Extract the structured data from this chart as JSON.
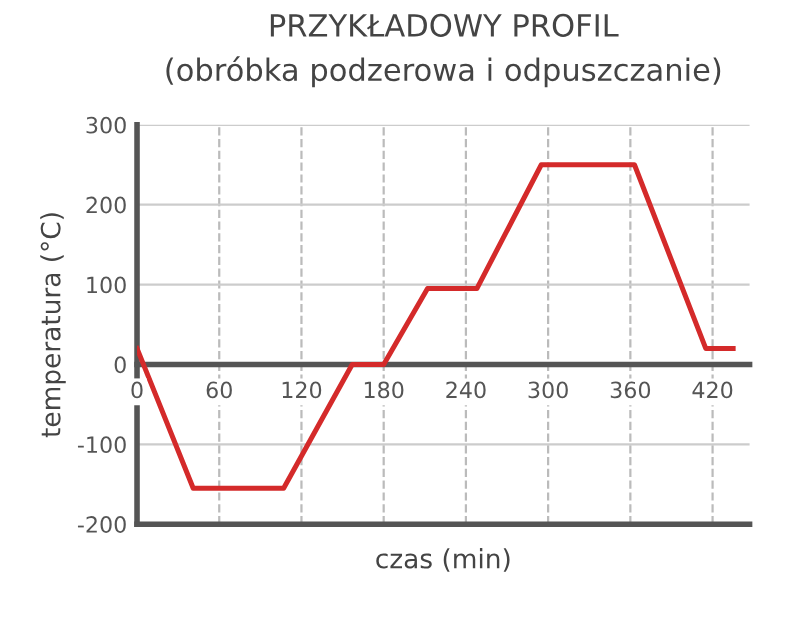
{
  "chart_data": {
    "type": "line",
    "title": "PRZYKŁADOWY PROFIL",
    "subtitle": "(obróbka podzerowa i odpuszczanie)",
    "xlabel": "czas (min)",
    "ylabel": "temperatura (°C)",
    "x": [
      0,
      41,
      107,
      157,
      180,
      212,
      248,
      295,
      363,
      415,
      435
    ],
    "series": [
      {
        "color": "#d42a2a",
        "values": [
          20,
          -155,
          -155,
          0,
          0,
          95,
          95,
          250,
          250,
          20,
          20
        ]
      }
    ],
    "xlim": [
      0,
      447
    ],
    "ylim": [
      -200,
      300
    ],
    "xticks": [
      0,
      60,
      120,
      180,
      240,
      300,
      360,
      420
    ],
    "yticks": [
      -200,
      -100,
      0,
      100,
      200,
      300
    ],
    "grid": true,
    "marker": "none",
    "line_style": "solid"
  }
}
